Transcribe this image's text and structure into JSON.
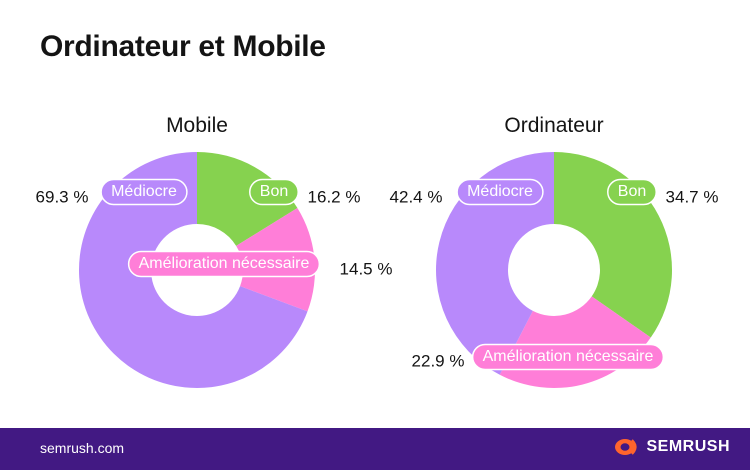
{
  "title": "Ordinateur et Mobile",
  "colors": {
    "Bon": "#86d24f",
    "Amélioration nécessaire": "#ff7ed8",
    "Médiocre": "#b889fb",
    "footer": "#421983",
    "brand": "#ff642d"
  },
  "chart_data": [
    {
      "type": "pie",
      "title": "Mobile",
      "categories": [
        "Bon",
        "Amélioration nécessaire",
        "Médiocre"
      ],
      "values": [
        16.2,
        14.5,
        69.3
      ],
      "value_labels": [
        "16.2 %",
        "14.5 %",
        "69.3 %"
      ]
    },
    {
      "type": "pie",
      "title": "Ordinateur",
      "categories": [
        "Bon",
        "Amélioration nécessaire",
        "Médiocre"
      ],
      "values": [
        34.7,
        22.9,
        42.4
      ],
      "value_labels": [
        "34.7 %",
        "22.9 %",
        "42.4 %"
      ]
    }
  ],
  "footer": {
    "site": "semrush.com",
    "brand": "SEMRUSH",
    "brand_icon": "semrush-fire-icon"
  }
}
